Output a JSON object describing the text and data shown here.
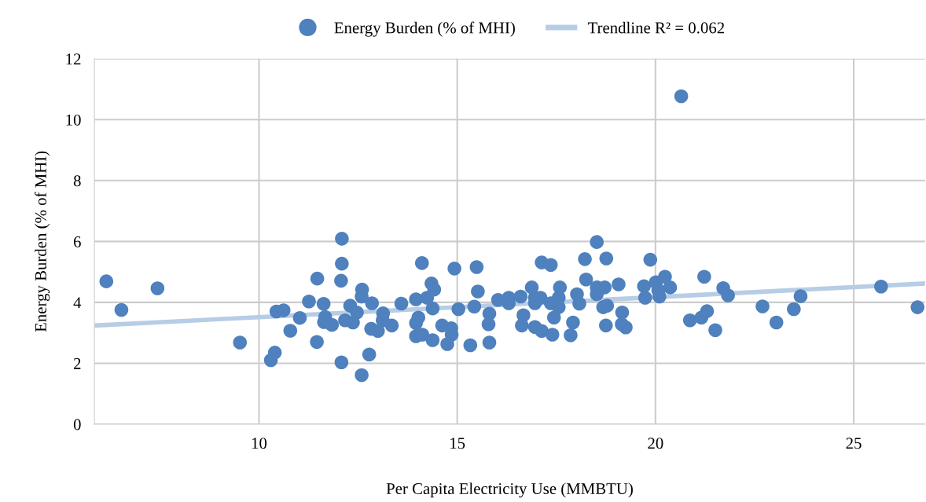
{
  "chart_data": {
    "type": "scatter",
    "xlabel": "Per Capita Electricity Use (MMBTU)",
    "ylabel": "Energy Burden (% of MHI)",
    "xlim": [
      5.85,
      26.8
    ],
    "xticks": [
      10,
      15,
      20,
      25
    ],
    "ylim": [
      0,
      12
    ],
    "yticks": [
      0,
      2,
      4,
      6,
      8,
      10,
      12
    ],
    "grid": true,
    "legend": "top",
    "marker": "circle",
    "series": [
      {
        "name": "Energy Burden (% of MHI)",
        "color": "#4e81bd",
        "x": [
          6.15,
          6.53,
          7.44,
          9.52,
          10.3,
          10.4,
          10.44,
          10.62,
          10.79,
          11.03,
          11.26,
          11.47,
          11.46,
          11.63,
          11.67,
          11.64,
          11.84,
          12.09,
          12.09,
          12.07,
          12.08,
          12.17,
          12.3,
          12.47,
          12.37,
          12.6,
          12.59,
          12.85,
          12.59,
          12.78,
          12.83,
          13.0,
          13.13,
          13.12,
          13.35,
          13.59,
          14.11,
          13.96,
          14.24,
          14.35,
          14.42,
          14.38,
          14.02,
          13.96,
          13.96,
          14.12,
          14.38,
          14.62,
          14.85,
          14.86,
          14.75,
          14.93,
          15.03,
          15.33,
          15.43,
          15.49,
          15.52,
          15.81,
          15.79,
          15.81,
          16.03,
          16.3,
          16.3,
          16.6,
          16.67,
          16.63,
          16.88,
          16.96,
          16.96,
          16.96,
          17.13,
          17.36,
          17.1,
          17.13,
          17.4,
          17.36,
          17.59,
          17.56,
          17.56,
          17.44,
          18.02,
          18.08,
          17.92,
          17.86,
          18.22,
          18.25,
          18.52,
          18.52,
          18.52,
          18.72,
          18.76,
          18.68,
          18.78,
          18.75,
          19.07,
          19.16,
          19.15,
          19.25,
          19.87,
          19.71,
          19.74,
          20.01,
          20.07,
          20.24,
          20.37,
          20.1,
          20.87,
          21.16,
          21.23,
          20.65,
          21.3,
          21.51,
          21.71,
          21.83,
          22.7,
          23.05,
          23.49,
          23.66,
          25.69,
          26.61
        ],
        "values": [
          4.69,
          3.75,
          4.46,
          2.68,
          2.1,
          2.35,
          3.7,
          3.74,
          3.07,
          3.49,
          4.03,
          4.78,
          2.7,
          3.95,
          3.52,
          3.35,
          3.26,
          6.09,
          5.27,
          4.71,
          2.03,
          3.41,
          3.89,
          3.67,
          3.34,
          4.42,
          4.19,
          3.97,
          1.61,
          2.29,
          3.13,
          3.06,
          3.64,
          3.41,
          3.24,
          3.96,
          5.29,
          4.1,
          4.15,
          4.62,
          4.42,
          3.8,
          3.5,
          3.32,
          2.89,
          2.94,
          2.76,
          3.24,
          3.15,
          2.94,
          2.63,
          5.11,
          3.78,
          2.59,
          3.86,
          5.16,
          4.36,
          3.63,
          3.28,
          2.68,
          4.08,
          3.97,
          4.15,
          4.19,
          3.58,
          3.24,
          4.49,
          4.15,
          3.97,
          3.19,
          5.31,
          5.23,
          4.15,
          3.06,
          2.94,
          3.97,
          4.49,
          4.15,
          3.84,
          3.5,
          4.27,
          3.96,
          3.34,
          2.92,
          5.42,
          4.75,
          5.98,
          4.49,
          4.27,
          4.49,
          5.44,
          3.84,
          3.89,
          3.24,
          4.59,
          3.67,
          3.28,
          3.18,
          5.4,
          4.53,
          4.15,
          4.66,
          4.4,
          4.84,
          4.49,
          4.19,
          3.41,
          3.5,
          4.84,
          10.77,
          3.71,
          3.09,
          4.47,
          4.23,
          3.87,
          3.34,
          3.78,
          4.2,
          4.52,
          3.84
        ]
      },
      {
        "name": "Trendline R² = 0.062",
        "type": "line",
        "color": "#b7cde6",
        "marker": "none",
        "x": [
          5.85,
          26.8
        ],
        "values": [
          3.24,
          4.62
        ]
      }
    ]
  }
}
